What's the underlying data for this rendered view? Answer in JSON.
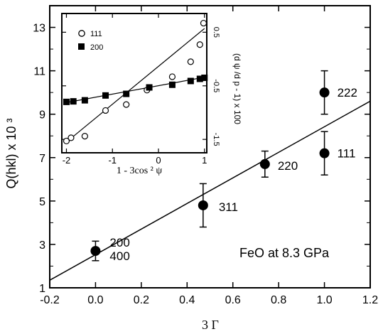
{
  "chart_data": [
    {
      "type": "scatter",
      "title": "",
      "annotation": "FeO at 8.3 GPa",
      "xlabel": "3 Γ",
      "ylabel": "Q(hkl) x 10 ³",
      "xlim": [
        -0.2,
        1.2
      ],
      "ylim": [
        1,
        14
      ],
      "x_ticks": [
        "-0.2",
        "0.0",
        "0.2",
        "0.4",
        "0.6",
        "0.8",
        "1.0",
        "1.2"
      ],
      "y_ticks": [
        "1",
        "3",
        "5",
        "7",
        "9",
        "11",
        "13"
      ],
      "points": [
        {
          "label": "200\n400",
          "x": 0.0,
          "y": 2.7,
          "err": 0.45
        },
        {
          "label": "311",
          "x": 0.47,
          "y": 4.8,
          "err": 1.0
        },
        {
          "label": "220",
          "x": 0.74,
          "y": 6.7,
          "err": 0.6
        },
        {
          "label": "111",
          "x": 1.0,
          "y": 7.2,
          "err": 1.0
        },
        {
          "label": "222",
          "x": 1.0,
          "y": 10.0,
          "err": 1.0
        }
      ],
      "fit_line": {
        "x": [
          -0.2,
          1.2
        ],
        "y": [
          1.35,
          9.6
        ]
      },
      "grid": false
    },
    {
      "type": "scatter",
      "title": "",
      "xlabel": "1 - 3cos ² ψ",
      "ylabel": "(d ψ /d p - 1) x 100",
      "xlim": [
        -2.1,
        1.05
      ],
      "ylim": [
        -1.75,
        0.85
      ],
      "x_ticks": [
        "-2",
        "-1",
        "0",
        "1"
      ],
      "y_ticks": [
        "-1.5",
        "-0.5",
        "0.5"
      ],
      "legend": [
        {
          "name": "111",
          "marker": "open-circle"
        },
        {
          "name": "200",
          "marker": "filled-square"
        }
      ],
      "series": [
        {
          "name": "111",
          "x": [
            -2.0,
            -1.9,
            -1.6,
            -1.15,
            -0.7,
            -0.25,
            0.3,
            0.7,
            0.9,
            0.98
          ],
          "y": [
            -1.53,
            -1.47,
            -1.44,
            -0.96,
            -0.85,
            -0.58,
            -0.33,
            -0.05,
            0.27,
            0.67
          ],
          "fit_line": {
            "x": [
              -2.0,
              1.0
            ],
            "y": [
              -1.55,
              0.57
            ]
          }
        },
        {
          "name": "200",
          "x": [
            -2.0,
            -1.85,
            -1.6,
            -1.15,
            -0.7,
            -0.2,
            0.3,
            0.7,
            0.9,
            1.0
          ],
          "y": [
            -0.8,
            -0.79,
            -0.77,
            -0.68,
            -0.65,
            -0.53,
            -0.48,
            -0.41,
            -0.37,
            -0.35
          ],
          "fit_line": {
            "x": [
              -2.05,
              1.0
            ],
            "y": [
              -0.82,
              -0.34
            ]
          }
        }
      ],
      "grid": false
    }
  ]
}
